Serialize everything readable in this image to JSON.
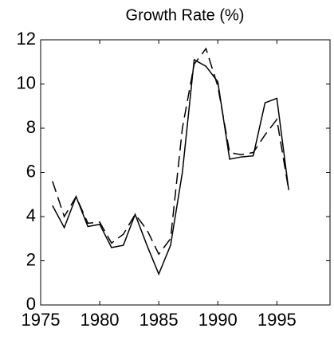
{
  "chart_data": {
    "type": "line",
    "title": "Growth Rate (%)",
    "x": [
      1976,
      1977,
      1978,
      1979,
      1980,
      1981,
      1982,
      1983,
      1984,
      1985,
      1986,
      1987,
      1988,
      1989,
      1990,
      1991,
      1992,
      1993,
      1994,
      1995,
      1996
    ],
    "series": [
      {
        "color": "#000000",
        "dash": "solid",
        "values": [
          4.5,
          3.5,
          4.9,
          3.55,
          3.65,
          2.6,
          2.7,
          4.1,
          2.7,
          1.4,
          2.7,
          6.0,
          11.1,
          10.8,
          10.1,
          6.6,
          6.7,
          6.75,
          9.15,
          9.35,
          5.2
        ]
      },
      {
        "color": "#000000",
        "dash": "dashed",
        "values": [
          5.6,
          4.0,
          4.9,
          3.7,
          3.75,
          2.8,
          3.2,
          4.1,
          3.4,
          2.3,
          3.0,
          8.0,
          10.9,
          11.6,
          9.9,
          6.9,
          6.8,
          6.9,
          7.7,
          8.4,
          5.2
        ]
      }
    ],
    "xlim": [
      1975,
      1999.5
    ],
    "xticks": [
      1975,
      1980,
      1985,
      1990,
      1995
    ],
    "ylim": [
      0,
      12
    ],
    "yticks": [
      0,
      2,
      4,
      6,
      8,
      10,
      12
    ]
  }
}
